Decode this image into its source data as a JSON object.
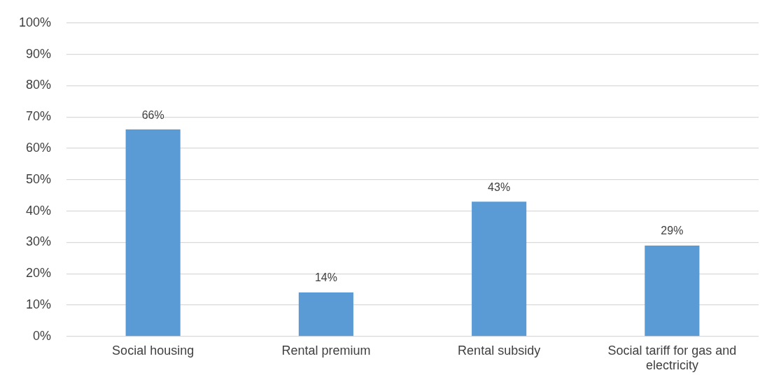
{
  "chart_data": {
    "type": "bar",
    "categories": [
      "Social housing",
      "Rental premium",
      "Rental subsidy",
      "Social tariff for gas and electricity"
    ],
    "values": [
      66,
      14,
      43,
      29
    ],
    "color": "#5b9bd5",
    "value_labels": [
      "66%",
      "14%",
      "43%",
      "29%"
    ],
    "ylim": [
      0,
      100
    ],
    "yticks": [
      {
        "value": 0,
        "label": "0%"
      },
      {
        "value": 10,
        "label": "10%"
      },
      {
        "value": 20,
        "label": "20%"
      },
      {
        "value": 30,
        "label": "30%"
      },
      {
        "value": 40,
        "label": "40%"
      },
      {
        "value": 50,
        "label": "50%"
      },
      {
        "value": 60,
        "label": "60%"
      },
      {
        "value": 70,
        "label": "70%"
      },
      {
        "value": 80,
        "label": "80%"
      },
      {
        "value": 90,
        "label": "90%"
      },
      {
        "value": 100,
        "label": "100%"
      }
    ],
    "grid": "y",
    "legend": false
  }
}
